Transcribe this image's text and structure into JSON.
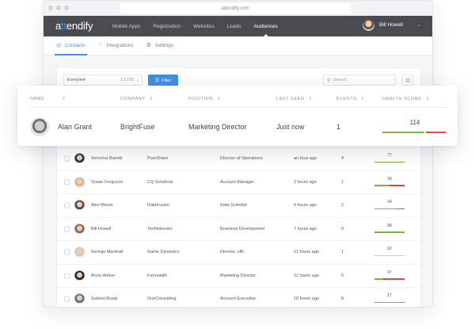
{
  "browser": {
    "url": "attendify.com"
  },
  "topnav": {
    "logo_pre": "a",
    "logo_mid": "tt",
    "logo_post": "endify",
    "items": [
      {
        "label": "Mobile Apps",
        "active": false
      },
      {
        "label": "Registration",
        "active": false
      },
      {
        "label": "Websites",
        "active": false
      },
      {
        "label": "Leads",
        "active": false
      },
      {
        "label": "Audiences",
        "active": true
      }
    ],
    "user": {
      "name": "Bill Howell",
      "chevron": "⌄"
    }
  },
  "subnav": {
    "tabs": [
      {
        "label": "Contacts",
        "icon": "contacts-icon",
        "active": true
      },
      {
        "label": "Integrations",
        "icon": "integrations-icon",
        "active": false
      },
      {
        "label": "Settings",
        "icon": "settings-icon",
        "active": false
      }
    ]
  },
  "toolbar": {
    "segment": "Everyone",
    "segment_count": "12,278",
    "filter_label": "Filter",
    "search_placeholder": "Search"
  },
  "table": {
    "columns": [
      "NAME",
      "COMPANY",
      "POSITION",
      "LAST SEEN",
      "EVENTS",
      "HEALTH SCORE"
    ],
    "sort_glyph": "⇕",
    "highlighted": {
      "name": "Alan Grant",
      "company": "BrightFuse",
      "position": "Marketing Director",
      "last_seen": "Just now",
      "events": "1",
      "health": "114",
      "health_green_pct": 68,
      "health_red_pct": 32
    },
    "rows": [
      {
        "name": "Veronica Barrett",
        "company": "PureShare",
        "position": "Director of Operations",
        "last_seen": "an hour ago",
        "events": "4",
        "health": "77",
        "green": 97,
        "red": 3,
        "avatar_color": "#3b3431"
      },
      {
        "name": "Susan Ferguson",
        "company": "CQ Solutions",
        "position": "Account Manager",
        "last_seen": "2 hours ago",
        "events": "1",
        "health": "58",
        "green": 48,
        "red": 52,
        "avatar_color": "#d9b59a"
      },
      {
        "name": "Alex Moore",
        "company": "DataFusion",
        "position": "Data Scientist",
        "last_seen": "6 hours ago",
        "events": "2",
        "health": "24",
        "green": 70,
        "red": 30,
        "avatar_color": "#5a4a42"
      },
      {
        "name": "Bill Howell",
        "company": "TenNetworks",
        "position": "Business Development",
        "last_seen": "7 hours ago",
        "events": "9",
        "health": "88",
        "green": 100,
        "red": 0,
        "avatar_color": "#8a6a55"
      },
      {
        "name": "George Marshall",
        "company": "Game Dynamics",
        "position": "Director, HR",
        "last_seen": "12 hours ago",
        "events": "1",
        "health": "62",
        "green": 0,
        "red": 0,
        "neutral": true,
        "avatar_color": "#d8c4b4"
      },
      {
        "name": "Anna Weber",
        "company": "FormulaM",
        "position": "Marketing Director",
        "last_seen": "12 hours ago",
        "events": "5",
        "health": "97",
        "green": 30,
        "red": 70,
        "avatar_color": "#2e2624"
      },
      {
        "name": "Gabriel Brady",
        "company": "OneConsulting",
        "position": "Account Executive",
        "last_seen": "16 hours ago",
        "events": "8",
        "health": "17",
        "green": 97,
        "red": 3,
        "avatar_color": "#6d6f74"
      }
    ]
  },
  "colors": {
    "accent": "#4a90e2",
    "nav_bg": "#4a4b51",
    "filter_button": "#3d8fe6",
    "health_good": "#7cb342",
    "health_bad": "#e04747",
    "health_neutral": "#c9cbd0"
  }
}
